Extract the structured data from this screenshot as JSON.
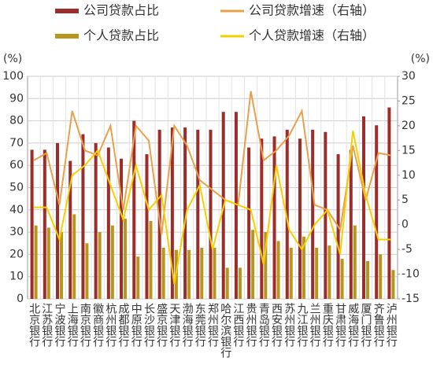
{
  "chart_data": {
    "type": "bar_line",
    "y_unit": "(%)",
    "y2_unit": "(%)",
    "categories": [
      "北京银行",
      "江苏银行",
      "宁波银行",
      "上海银行",
      "南京银行",
      "徽商银行",
      "杭州银行",
      "成都银行",
      "中原银行",
      "长沙银行",
      "盛京银行",
      "天津银行",
      "渤海银行",
      "东莞银行",
      "郑州银行",
      "哈尔滨银行",
      "江西银行",
      "贵州银行",
      "青岛银行",
      "西安银行",
      "苏州银行",
      "九江银行",
      "兰州银行",
      "重庆银行",
      "甘肃银行",
      "威海银行",
      "厦门银行",
      "齐鲁银行",
      "泸州银行"
    ],
    "ylim": [
      0,
      100
    ],
    "yticks": [
      0,
      10,
      20,
      30,
      40,
      50,
      60,
      70,
      80,
      90,
      100
    ],
    "y2lim": [
      -15,
      30
    ],
    "y2ticks": [
      -15,
      -10,
      -5,
      0,
      5,
      10,
      15,
      20,
      25,
      30
    ],
    "grid": true,
    "series": [
      {
        "name": "公司贷款占比",
        "kind": "bar",
        "color": "#9b2d2a",
        "values": [
          67,
          67,
          70,
          62,
          74,
          70,
          68,
          63,
          80,
          65,
          76,
          77,
          77,
          76,
          76,
          84,
          84,
          68,
          72,
          73,
          76,
          72,
          76,
          75,
          65,
          67,
          82,
          78,
          86
        ]
      },
      {
        "name": "公司贷款增速（右轴）",
        "kind": "line",
        "axis": "y2",
        "color": "#e8a04b",
        "values": [
          13,
          14.5,
          4,
          23,
          15,
          14,
          20,
          3,
          20,
          17,
          -2,
          20,
          16,
          9,
          7,
          5,
          4,
          27,
          13,
          15,
          18,
          23,
          4,
          3,
          -1,
          16,
          5,
          14.5,
          14
        ]
      },
      {
        "name": "个人贷款占比",
        "kind": "bar",
        "color": "#b8961e",
        "values": [
          33,
          32,
          30,
          38,
          25,
          30,
          33,
          36,
          19,
          35,
          23,
          22,
          22,
          23,
          23,
          14,
          14,
          31,
          30,
          26,
          23,
          28,
          23,
          24,
          18,
          33,
          17,
          20,
          13
        ]
      },
      {
        "name": "个人贷款增速（右轴）",
        "kind": "line",
        "axis": "y2",
        "color": "#f5d000",
        "values": [
          3.5,
          3.5,
          -3,
          10,
          12,
          15,
          8,
          1,
          12,
          3,
          6,
          -12,
          3,
          8,
          -5,
          5,
          4,
          3,
          -8,
          12,
          -1,
          -5,
          0,
          3,
          -6,
          19,
          6,
          -3,
          -3
        ]
      }
    ]
  }
}
